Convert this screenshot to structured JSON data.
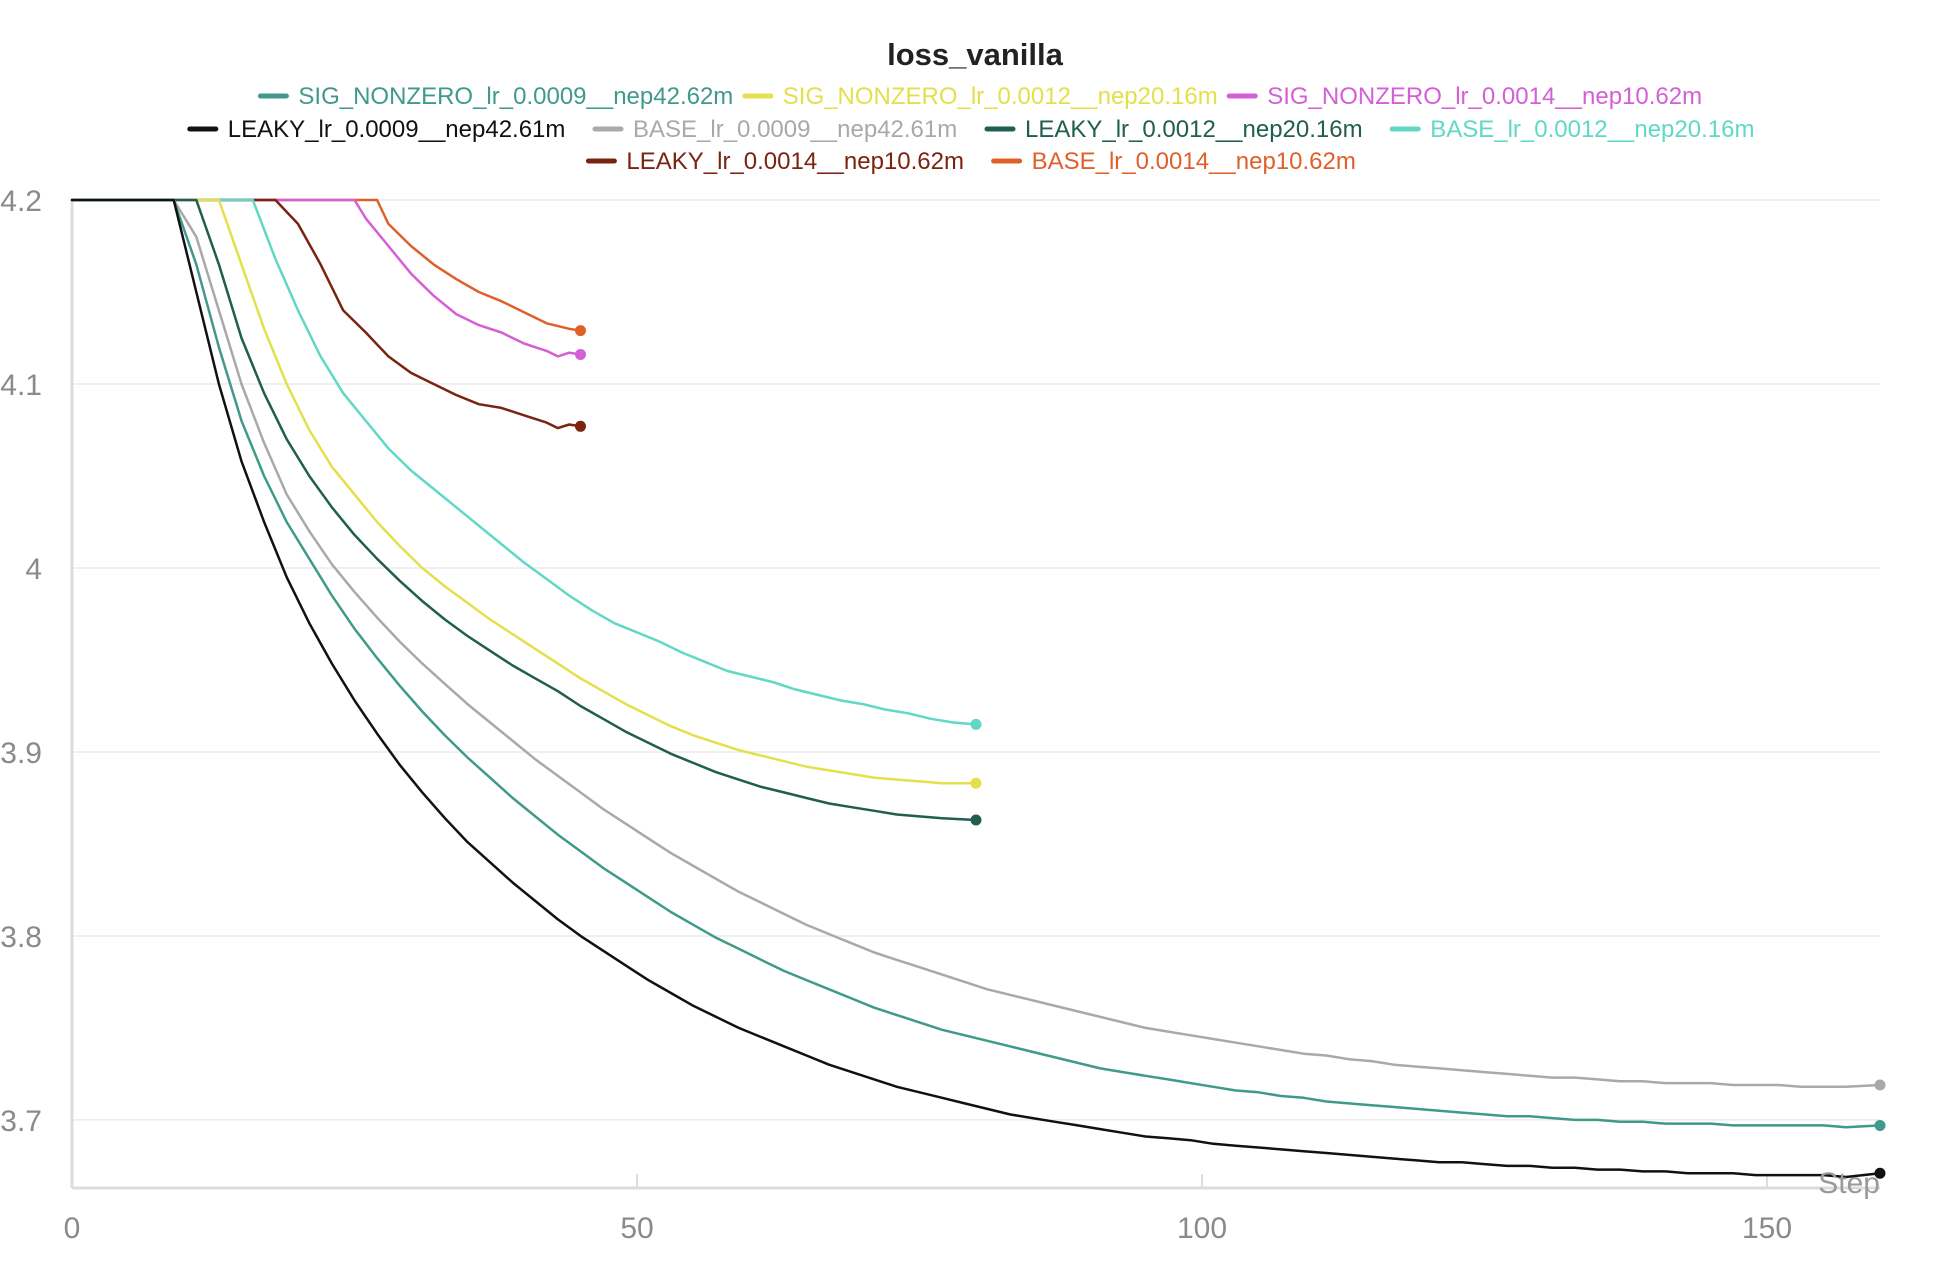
{
  "chart_data": {
    "type": "line",
    "title": "loss_vanilla",
    "xlabel": "Step",
    "ylabel": "",
    "xlim": [
      0,
      160
    ],
    "ylim": [
      3.663,
      4.2
    ],
    "x_ticks": [
      0,
      50,
      100,
      150
    ],
    "y_ticks": [
      3.7,
      3.8,
      3.9,
      4.0,
      4.1,
      4.2
    ],
    "x_tick_labels": [
      "0",
      "50",
      "100",
      "150"
    ],
    "y_tick_labels": [
      "3.7",
      "3.8",
      "3.9",
      "4",
      "4.1",
      "4.2"
    ],
    "grid": true,
    "legend_position": "top-center",
    "legend": [
      {
        "name": "SIG_NONZERO_lr_0.0009__nep42.62m",
        "color": "#3f9a8a"
      },
      {
        "name": "SIG_NONZERO_lr_0.0012__nep20.16m",
        "color": "#e3e04b"
      },
      {
        "name": "SIG_NONZERO_lr_0.0014__nep10.62m",
        "color": "#d45fd6"
      },
      {
        "name": "LEAKY_lr_0.0009__nep42.61m",
        "color": "#111111"
      },
      {
        "name": "BASE_lr_0.0009__nep42.61m",
        "color": "#a9a9a9"
      },
      {
        "name": "LEAKY_lr_0.0012__nep20.16m",
        "color": "#1f5e50"
      },
      {
        "name": "BASE_lr_0.0012__nep20.16m",
        "color": "#5fd9c6"
      },
      {
        "name": "LEAKY_lr_0.0014__nep10.62m",
        "color": "#7a2410"
      },
      {
        "name": "BASE_lr_0.0014__nep10.62m",
        "color": "#e0602a"
      }
    ],
    "series": [
      {
        "name": "BASE_lr_0.0014__nep10.62m",
        "color": "#e0602a",
        "x": [
          0,
          27,
          28,
          30,
          32,
          34,
          36,
          38,
          40,
          42,
          44,
          45
        ],
        "y": [
          4.2,
          4.2,
          4.187,
          4.175,
          4.165,
          4.157,
          4.15,
          4.145,
          4.139,
          4.133,
          4.13,
          4.129
        ]
      },
      {
        "name": "SIG_NONZERO_lr_0.0014__nep10.62m",
        "color": "#d45fd6",
        "x": [
          0,
          25,
          26,
          28,
          30,
          32,
          34,
          36,
          38,
          40,
          42,
          43,
          44,
          45
        ],
        "y": [
          4.2,
          4.2,
          4.19,
          4.175,
          4.16,
          4.148,
          4.138,
          4.132,
          4.128,
          4.122,
          4.118,
          4.115,
          4.117,
          4.116
        ]
      },
      {
        "name": "LEAKY_lr_0.0014__nep10.62m",
        "color": "#7a2410",
        "x": [
          0,
          18,
          20,
          22,
          24,
          26,
          28,
          30,
          32,
          34,
          36,
          38,
          40,
          42,
          43,
          44,
          45
        ],
        "y": [
          4.2,
          4.2,
          4.187,
          4.165,
          4.14,
          4.128,
          4.115,
          4.106,
          4.1,
          4.094,
          4.089,
          4.087,
          4.083,
          4.079,
          4.076,
          4.078,
          4.077
        ]
      },
      {
        "name": "BASE_lr_0.0012__nep20.16m",
        "color": "#5fd9c6",
        "x": [
          0,
          16,
          18,
          20,
          22,
          24,
          26,
          28,
          30,
          32,
          34,
          36,
          38,
          40,
          42,
          44,
          46,
          48,
          50,
          52,
          54,
          56,
          58,
          60,
          62,
          64,
          66,
          68,
          70,
          72,
          74,
          76,
          78,
          80
        ],
        "y": [
          4.2,
          4.2,
          4.168,
          4.14,
          4.115,
          4.095,
          4.08,
          4.065,
          4.053,
          4.043,
          4.033,
          4.023,
          4.013,
          4.003,
          3.994,
          3.985,
          3.977,
          3.97,
          3.965,
          3.96,
          3.954,
          3.949,
          3.944,
          3.941,
          3.938,
          3.934,
          3.931,
          3.928,
          3.926,
          3.923,
          3.921,
          3.918,
          3.916,
          3.915
        ]
      },
      {
        "name": "SIG_NONZERO_lr_0.0012__nep20.16m",
        "color": "#e3e04b",
        "x": [
          0,
          13,
          15,
          17,
          19,
          21,
          23,
          25,
          27,
          29,
          31,
          33,
          35,
          37,
          39,
          41,
          43,
          45,
          47,
          49,
          51,
          53,
          55,
          57,
          59,
          61,
          63,
          65,
          67,
          69,
          71,
          73,
          75,
          77,
          80
        ],
        "y": [
          4.2,
          4.2,
          4.165,
          4.13,
          4.1,
          4.075,
          4.055,
          4.04,
          4.025,
          4.012,
          4.0,
          3.99,
          3.981,
          3.972,
          3.964,
          3.956,
          3.948,
          3.94,
          3.933,
          3.926,
          3.92,
          3.914,
          3.909,
          3.905,
          3.901,
          3.898,
          3.895,
          3.892,
          3.89,
          3.888,
          3.886,
          3.885,
          3.884,
          3.883,
          3.883
        ]
      },
      {
        "name": "LEAKY_lr_0.0012__nep20.16m",
        "color": "#1f5e50",
        "x": [
          0,
          11,
          13,
          15,
          17,
          19,
          21,
          23,
          25,
          27,
          29,
          31,
          33,
          35,
          37,
          39,
          41,
          43,
          45,
          47,
          49,
          51,
          53,
          55,
          57,
          59,
          61,
          63,
          65,
          67,
          69,
          71,
          73,
          75,
          77,
          80
        ],
        "y": [
          4.2,
          4.2,
          4.165,
          4.125,
          4.095,
          4.07,
          4.05,
          4.033,
          4.018,
          4.005,
          3.993,
          3.982,
          3.972,
          3.963,
          3.955,
          3.947,
          3.94,
          3.933,
          3.925,
          3.918,
          3.911,
          3.905,
          3.899,
          3.894,
          3.889,
          3.885,
          3.881,
          3.878,
          3.875,
          3.872,
          3.87,
          3.868,
          3.866,
          3.865,
          3.864,
          3.863
        ]
      },
      {
        "name": "BASE_lr_0.0009__nep42.61m",
        "color": "#a9a9a9",
        "x": [
          0,
          9,
          11,
          13,
          15,
          17,
          19,
          21,
          23,
          25,
          27,
          29,
          31,
          33,
          35,
          37,
          39,
          41,
          43,
          45,
          47,
          49,
          51,
          53,
          55,
          57,
          59,
          61,
          63,
          65,
          67,
          69,
          71,
          73,
          75,
          77,
          79,
          81,
          83,
          85,
          87,
          89,
          91,
          93,
          95,
          97,
          99,
          101,
          103,
          105,
          107,
          109,
          111,
          113,
          115,
          117,
          119,
          121,
          123,
          125,
          127,
          129,
          131,
          133,
          135,
          137,
          139,
          141,
          143,
          145,
          147,
          149,
          151,
          153,
          155,
          157,
          160
        ],
        "y": [
          4.2,
          4.2,
          4.18,
          4.14,
          4.1,
          4.068,
          4.04,
          4.02,
          4.002,
          3.987,
          3.973,
          3.96,
          3.948,
          3.937,
          3.926,
          3.916,
          3.906,
          3.896,
          3.887,
          3.878,
          3.869,
          3.861,
          3.853,
          3.845,
          3.838,
          3.831,
          3.824,
          3.818,
          3.812,
          3.806,
          3.801,
          3.796,
          3.791,
          3.787,
          3.783,
          3.779,
          3.775,
          3.771,
          3.768,
          3.765,
          3.762,
          3.759,
          3.756,
          3.753,
          3.75,
          3.748,
          3.746,
          3.744,
          3.742,
          3.74,
          3.738,
          3.736,
          3.735,
          3.733,
          3.732,
          3.73,
          3.729,
          3.728,
          3.727,
          3.726,
          3.725,
          3.724,
          3.723,
          3.723,
          3.722,
          3.721,
          3.721,
          3.72,
          3.72,
          3.72,
          3.719,
          3.719,
          3.719,
          3.718,
          3.718,
          3.718,
          3.719
        ]
      },
      {
        "name": "SIG_NONZERO_lr_0.0009__nep42.62m",
        "color": "#3f9a8a",
        "x": [
          0,
          9,
          11,
          13,
          15,
          17,
          19,
          21,
          23,
          25,
          27,
          29,
          31,
          33,
          35,
          37,
          39,
          41,
          43,
          45,
          47,
          49,
          51,
          53,
          55,
          57,
          59,
          61,
          63,
          65,
          67,
          69,
          71,
          73,
          75,
          77,
          79,
          81,
          83,
          85,
          87,
          89,
          91,
          93,
          95,
          97,
          99,
          101,
          103,
          105,
          107,
          109,
          111,
          113,
          115,
          117,
          119,
          121,
          123,
          125,
          127,
          129,
          131,
          133,
          135,
          137,
          139,
          141,
          143,
          145,
          147,
          149,
          151,
          153,
          155,
          157,
          160
        ],
        "y": [
          4.2,
          4.2,
          4.165,
          4.12,
          4.08,
          4.05,
          4.025,
          4.005,
          3.985,
          3.967,
          3.951,
          3.936,
          3.922,
          3.909,
          3.897,
          3.886,
          3.875,
          3.865,
          3.855,
          3.846,
          3.837,
          3.829,
          3.821,
          3.813,
          3.806,
          3.799,
          3.793,
          3.787,
          3.781,
          3.776,
          3.771,
          3.766,
          3.761,
          3.757,
          3.753,
          3.749,
          3.746,
          3.743,
          3.74,
          3.737,
          3.734,
          3.731,
          3.728,
          3.726,
          3.724,
          3.722,
          3.72,
          3.718,
          3.716,
          3.715,
          3.713,
          3.712,
          3.71,
          3.709,
          3.708,
          3.707,
          3.706,
          3.705,
          3.704,
          3.703,
          3.702,
          3.702,
          3.701,
          3.7,
          3.7,
          3.699,
          3.699,
          3.698,
          3.698,
          3.698,
          3.697,
          3.697,
          3.697,
          3.697,
          3.697,
          3.696,
          3.697
        ]
      },
      {
        "name": "LEAKY_lr_0.0009__nep42.61m",
        "color": "#111111",
        "x": [
          0,
          9,
          11,
          13,
          15,
          17,
          19,
          21,
          23,
          25,
          27,
          29,
          31,
          33,
          35,
          37,
          39,
          41,
          43,
          45,
          47,
          49,
          51,
          53,
          55,
          57,
          59,
          61,
          63,
          65,
          67,
          69,
          71,
          73,
          75,
          77,
          79,
          81,
          83,
          85,
          87,
          89,
          91,
          93,
          95,
          97,
          99,
          101,
          103,
          105,
          107,
          109,
          111,
          113,
          115,
          117,
          119,
          121,
          123,
          125,
          127,
          129,
          131,
          133,
          135,
          137,
          139,
          141,
          143,
          145,
          147,
          149,
          151,
          153,
          155,
          157,
          160
        ],
        "y": [
          4.2,
          4.2,
          4.15,
          4.1,
          4.058,
          4.025,
          3.995,
          3.97,
          3.948,
          3.928,
          3.91,
          3.893,
          3.878,
          3.864,
          3.851,
          3.84,
          3.829,
          3.819,
          3.809,
          3.8,
          3.792,
          3.784,
          3.776,
          3.769,
          3.762,
          3.756,
          3.75,
          3.745,
          3.74,
          3.735,
          3.73,
          3.726,
          3.722,
          3.718,
          3.715,
          3.712,
          3.709,
          3.706,
          3.703,
          3.701,
          3.699,
          3.697,
          3.695,
          3.693,
          3.691,
          3.69,
          3.689,
          3.687,
          3.686,
          3.685,
          3.684,
          3.683,
          3.682,
          3.681,
          3.68,
          3.679,
          3.678,
          3.677,
          3.677,
          3.676,
          3.675,
          3.675,
          3.674,
          3.674,
          3.673,
          3.673,
          3.672,
          3.672,
          3.671,
          3.671,
          3.671,
          3.67,
          3.67,
          3.67,
          3.67,
          3.669,
          3.671
        ]
      }
    ]
  }
}
